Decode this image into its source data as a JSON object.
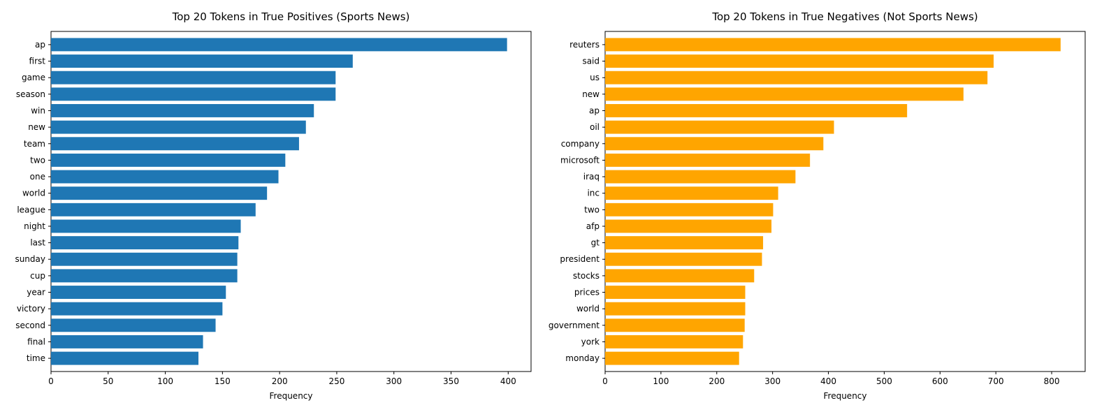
{
  "chart_data": [
    {
      "type": "bar",
      "orientation": "horizontal",
      "title": "Top 20 Tokens in True Positives (Sports News)",
      "xlabel": "Frequency",
      "ylabel": "",
      "color": "#1f77b4",
      "xlim": [
        0,
        420
      ],
      "xticks": [
        0,
        50,
        100,
        150,
        200,
        250,
        300,
        350,
        400
      ],
      "grid": false,
      "categories": [
        "ap",
        "first",
        "game",
        "season",
        "win",
        "new",
        "team",
        "two",
        "one",
        "world",
        "league",
        "night",
        "last",
        "sunday",
        "cup",
        "year",
        "victory",
        "second",
        "final",
        "time"
      ],
      "values": [
        399,
        264,
        249,
        249,
        230,
        223,
        217,
        205,
        199,
        189,
        179,
        166,
        164,
        163,
        163,
        153,
        150,
        144,
        133,
        129
      ]
    },
    {
      "type": "bar",
      "orientation": "horizontal",
      "title": "Top 20 Tokens in True Negatives (Not Sports News)",
      "xlabel": "Frequency",
      "ylabel": "",
      "color": "#ffa500",
      "xlim": [
        0,
        860
      ],
      "xticks": [
        0,
        100,
        200,
        300,
        400,
        500,
        600,
        700,
        800
      ],
      "grid": false,
      "categories": [
        "reuters",
        "said",
        "us",
        "new",
        "ap",
        "oil",
        "company",
        "microsoft",
        "iraq",
        "inc",
        "two",
        "afp",
        "gt",
        "president",
        "stocks",
        "prices",
        "world",
        "government",
        "york",
        "monday"
      ],
      "values": [
        816,
        696,
        685,
        642,
        541,
        410,
        391,
        367,
        341,
        310,
        301,
        298,
        283,
        281,
        267,
        251,
        251,
        250,
        247,
        240
      ]
    }
  ]
}
